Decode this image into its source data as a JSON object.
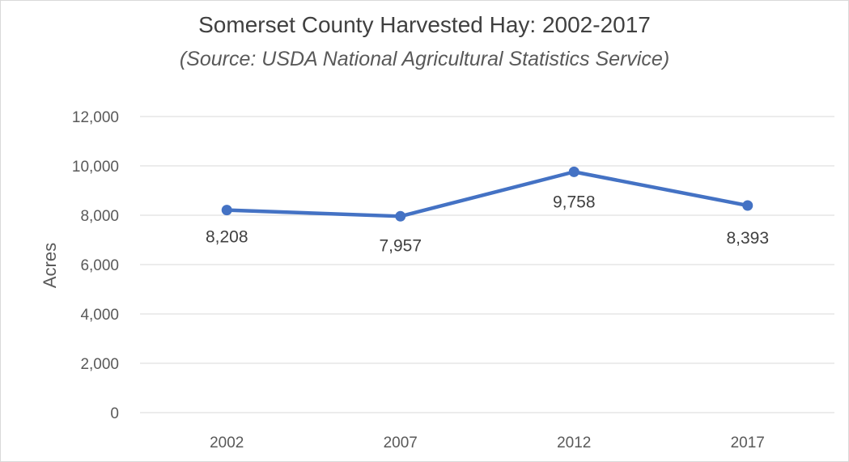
{
  "chart_data": {
    "type": "line",
    "title": "Somerset County Harvested Hay: 2002-2017",
    "subtitle": "(Source: USDA National Agricultural Statistics Service)",
    "xlabel": "",
    "ylabel": "Acres",
    "categories": [
      "2002",
      "2007",
      "2012",
      "2017"
    ],
    "series": [
      {
        "values": [
          8208,
          7957,
          9758,
          8393
        ],
        "labels": [
          "8,208",
          "7,957",
          "9,758",
          "8,393"
        ],
        "color": "#4472c4"
      }
    ],
    "ylim": [
      0,
      12000
    ],
    "yticks": [
      0,
      2000,
      4000,
      6000,
      8000,
      10000,
      12000
    ],
    "ytick_labels": [
      "0",
      "2,000",
      "4,000",
      "6,000",
      "8,000",
      "10,000",
      "12,000"
    ],
    "grid": true,
    "legend": "none"
  }
}
